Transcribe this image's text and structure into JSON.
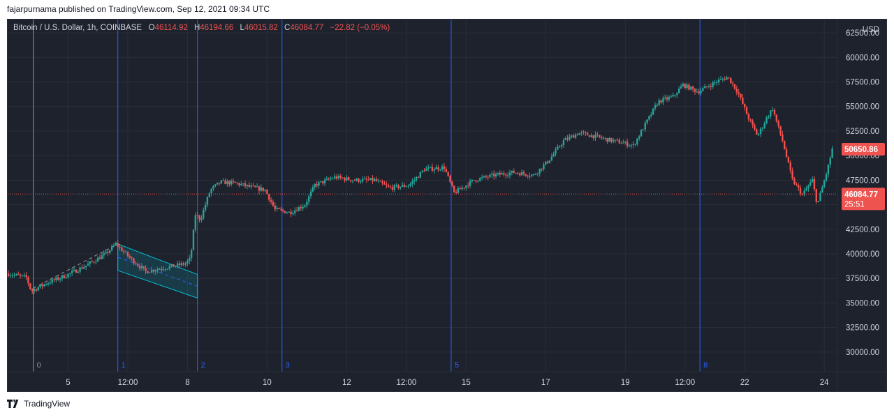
{
  "header": {
    "publish_line": "fajarpurnama published on TradingView.com, Sep 12, 2021 09:34 UTC"
  },
  "legend": {
    "symbol": "Bitcoin / U.S. Dollar, 1h, COINBASE",
    "o_label": "O",
    "o_value": "46114.92",
    "h_label": "H",
    "h_value": "46194.66",
    "l_label": "L",
    "l_value": "46015.82",
    "c_label": "C",
    "c_value": "46084.77",
    "change": "−22.82 (−0.05%)"
  },
  "footer": {
    "brand": "TradingView"
  },
  "colors": {
    "background": "#1e222d",
    "up": "#26a69a",
    "down": "#ef5350",
    "vline": "#2962ff",
    "channel": "#00bcd4",
    "price_label": "#ef5350"
  },
  "chart_data": {
    "type": "candlestick",
    "currency": "USD",
    "y_ticks": [
      30000,
      32500,
      35000,
      37500,
      40000,
      42500,
      45000,
      47500,
      50000,
      52500,
      55000,
      57500,
      60000,
      62500
    ],
    "y_tick_labels": [
      "30000.00",
      "32500.00",
      "35000.00",
      "37500.00",
      "40000.00",
      "42500.00",
      "45000.00",
      "47500.00",
      "50000.00",
      "52500.00",
      "55000.00",
      "57500.00",
      "60000.00",
      "62500.00"
    ],
    "ylim": [
      28000,
      63500
    ],
    "x_axis": [
      {
        "label": "5",
        "hour": 12
      },
      {
        "label": "12:00",
        "hour": 24
      },
      {
        "label": "8",
        "hour": 36
      },
      {
        "label": "10",
        "hour": 52
      },
      {
        "label": "12",
        "hour": 68
      },
      {
        "label": "12:00",
        "hour": 80
      },
      {
        "label": "15",
        "hour": 92
      },
      {
        "label": "17",
        "hour": 108
      },
      {
        "label": "19",
        "hour": 124
      },
      {
        "label": "12:00",
        "hour": 136
      },
      {
        "label": "22",
        "hour": 148
      },
      {
        "label": "24",
        "hour": 164
      }
    ],
    "vertical_markers": [
      {
        "label": "0",
        "hour": 5
      },
      {
        "label": "1",
        "hour": 22
      },
      {
        "label": "2",
        "hour": 38
      },
      {
        "label": "3",
        "hour": 55
      },
      {
        "label": "5",
        "hour": 89
      },
      {
        "label": "8",
        "hour": 139
      }
    ],
    "price_profile": [
      [
        0,
        38000
      ],
      [
        4,
        37600
      ],
      [
        5,
        36200
      ],
      [
        8,
        37000
      ],
      [
        12,
        37800
      ],
      [
        16,
        38800
      ],
      [
        20,
        40000
      ],
      [
        22,
        41000
      ],
      [
        25,
        39500
      ],
      [
        28,
        38200
      ],
      [
        31,
        38500
      ],
      [
        34,
        38800
      ],
      [
        36,
        39000
      ],
      [
        37,
        39500
      ],
      [
        38,
        44000
      ],
      [
        39,
        43500
      ],
      [
        41,
        46500
      ],
      [
        43,
        47300
      ],
      [
        46,
        47200
      ],
      [
        49,
        46800
      ],
      [
        52,
        46500
      ],
      [
        54,
        44500
      ],
      [
        57,
        44200
      ],
      [
        60,
        45000
      ],
      [
        62,
        47000
      ],
      [
        66,
        47800
      ],
      [
        70,
        47500
      ],
      [
        74,
        47500
      ],
      [
        77,
        46700
      ],
      [
        81,
        47000
      ],
      [
        84,
        48600
      ],
      [
        88,
        48800
      ],
      [
        90,
        46200
      ],
      [
        94,
        47500
      ],
      [
        98,
        48000
      ],
      [
        102,
        48300
      ],
      [
        106,
        48000
      ],
      [
        109,
        49500
      ],
      [
        112,
        51500
      ],
      [
        115,
        52300
      ],
      [
        118,
        52000
      ],
      [
        121,
        51600
      ],
      [
        124,
        51300
      ],
      [
        126,
        51000
      ],
      [
        128,
        52800
      ],
      [
        131,
        55500
      ],
      [
        134,
        56000
      ],
      [
        136,
        57200
      ],
      [
        139,
        56500
      ],
      [
        143,
        57600
      ],
      [
        145,
        58000
      ],
      [
        147,
        56500
      ],
      [
        149,
        54000
      ],
      [
        151,
        52000
      ],
      [
        153,
        54000
      ],
      [
        154,
        54800
      ],
      [
        156,
        51500
      ],
      [
        158,
        47500
      ],
      [
        160,
        46000
      ],
      [
        162,
        47500
      ],
      [
        163,
        45000
      ],
      [
        165,
        48500
      ],
      [
        166,
        50650
      ]
    ],
    "last_price": 46084.77,
    "last_price_label": "46084.77",
    "countdown_label": "25:51",
    "high_price": 50650.86,
    "high_price_label": "50650.86"
  }
}
